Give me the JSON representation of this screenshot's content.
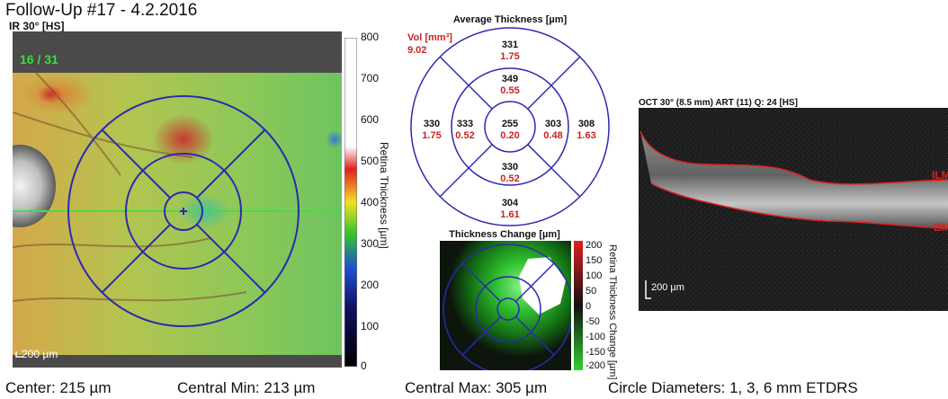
{
  "title": "Follow-Up #17 - 4.2.2016",
  "ir_view": {
    "label": "IR 30° [HS]",
    "counter": "16 / 31",
    "scale_label": "200 µm"
  },
  "colorbar": {
    "ticks": [
      "800",
      "700",
      "600",
      "500",
      "400",
      "300",
      "200",
      "100",
      "0"
    ],
    "title": "Retina Thickness [µm]"
  },
  "average_thickness": {
    "title": "Average Thickness [µm]",
    "vol_label": "Vol [mm³]",
    "vol_value": "9.02",
    "sectors": [
      {
        "name": "outer-superior",
        "thickness": "331",
        "volume": "1.75"
      },
      {
        "name": "inner-superior",
        "thickness": "349",
        "volume": "0.55"
      },
      {
        "name": "outer-temporal",
        "thickness": "330",
        "volume": "1.75"
      },
      {
        "name": "inner-temporal",
        "thickness": "333",
        "volume": "0.52"
      },
      {
        "name": "center",
        "thickness": "255",
        "volume": "0.20"
      },
      {
        "name": "inner-nasal",
        "thickness": "303",
        "volume": "0.48"
      },
      {
        "name": "outer-nasal",
        "thickness": "308",
        "volume": "1.63"
      },
      {
        "name": "inner-inferior",
        "thickness": "330",
        "volume": "0.52"
      },
      {
        "name": "outer-inferior",
        "thickness": "304",
        "volume": "1.61"
      }
    ]
  },
  "thickness_change": {
    "title": "Thickness Change [µm]",
    "ticks": [
      "200",
      "150",
      "100",
      "50",
      "0",
      "-50",
      "-100",
      "-150",
      "-200"
    ],
    "bar_title": "Retina Thickness Change [µm]"
  },
  "oct": {
    "label": "OCT 30° (8.5 mm) ART (11) Q: 24 [HS]",
    "scale_label": "200 µm",
    "ilm_label": "ILM",
    "bm_label": "BM"
  },
  "stats": {
    "center": "Center: 215 µm",
    "central_min": "Central Min: 213 µm",
    "central_max": "Central Max: 305 µm",
    "circle_diameters": "Circle Diameters:  1, 3, 6 mm ETDRS"
  },
  "colors": {
    "grid": "#2a2ab0",
    "value_red": "#cc2222",
    "counter_green": "#3cdc3c"
  }
}
